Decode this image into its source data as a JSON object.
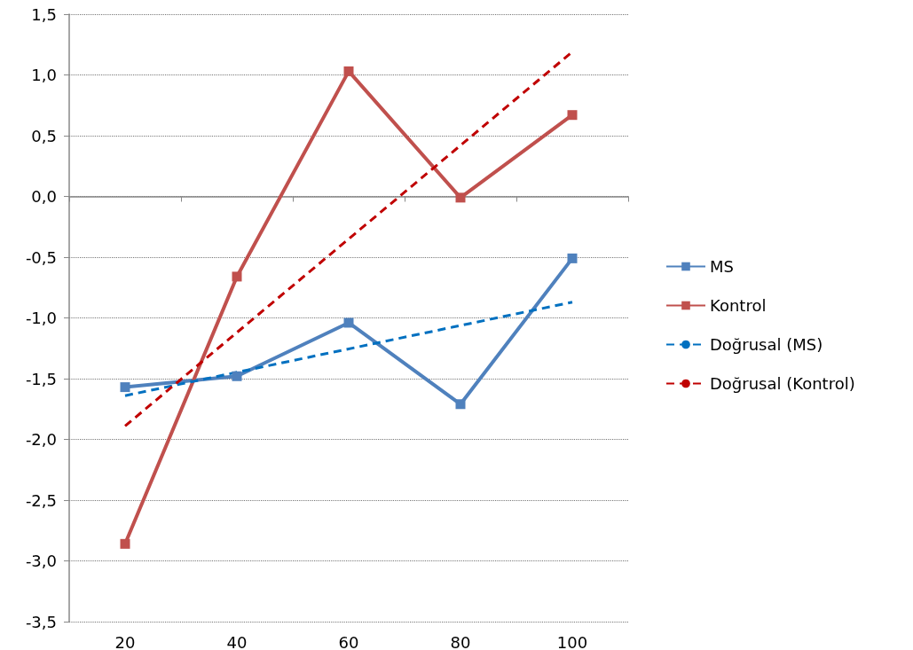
{
  "chart_data": {
    "type": "line",
    "categories": [
      "20",
      "40",
      "60",
      "80",
      "100"
    ],
    "series": [
      {
        "name": "MS",
        "color": "#4f81bd",
        "values": [
          -1.57,
          -1.48,
          -1.04,
          -1.71,
          -0.51
        ],
        "marker": "square",
        "line_style": "solid"
      },
      {
        "name": "Kontrol",
        "color": "#c0504d",
        "values": [
          -2.86,
          -0.66,
          1.03,
          -0.01,
          0.67
        ],
        "marker": "square",
        "line_style": "solid"
      },
      {
        "name": "Doğrusal (MS)",
        "color": "#0070c0",
        "x": [
          "20",
          "100"
        ],
        "values": [
          -1.64,
          -0.87
        ],
        "marker": "none",
        "line_style": "dashed"
      },
      {
        "name": "Doğrusal (Kontrol)",
        "color": "#c00000",
        "x": [
          "20",
          "100"
        ],
        "values": [
          -1.89,
          1.19
        ],
        "marker": "none",
        "line_style": "dashed"
      }
    ],
    "ylim": [
      -3.5,
      1.5
    ],
    "yticks": [
      {
        "value": -3.5,
        "label": "-3,5"
      },
      {
        "value": -3,
        "label": "-3,0"
      },
      {
        "value": -2.5,
        "label": "-2,5"
      },
      {
        "value": -2,
        "label": "-2,0"
      },
      {
        "value": -1.5,
        "label": "-1,5"
      },
      {
        "value": -1,
        "label": "-1,0"
      },
      {
        "value": -0.5,
        "label": "-0,5"
      },
      {
        "value": 0,
        "label": "0,0"
      },
      {
        "value": 0.5,
        "label": "0,5"
      },
      {
        "value": 1,
        "label": "1,0"
      },
      {
        "value": 1.5,
        "label": "1,5"
      }
    ],
    "grid": "y",
    "legend": "right"
  }
}
